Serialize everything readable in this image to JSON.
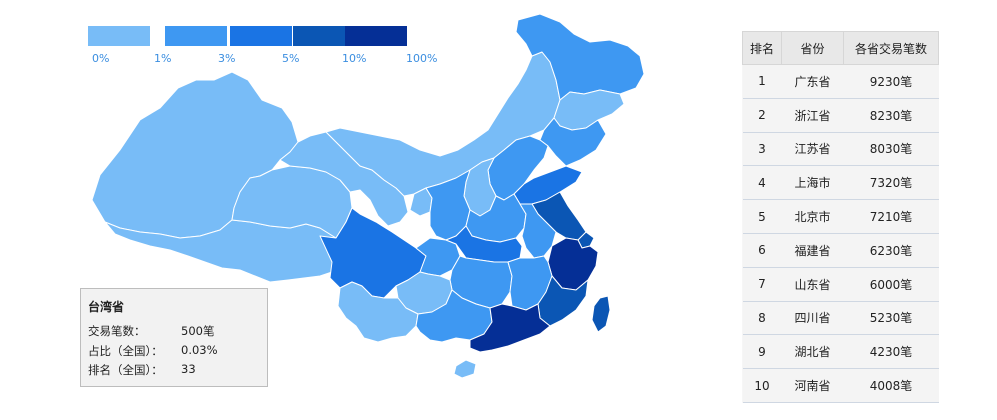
{
  "legend": {
    "swatches": [
      {
        "color": "#78bcf7"
      },
      {
        "color": "#3e98f2"
      },
      {
        "color": "#1a74e4"
      },
      {
        "color": "#0b56b4"
      },
      {
        "color": "#052f96"
      }
    ],
    "labels": [
      "0%",
      "1%",
      "3%",
      "5%",
      "10%",
      "100%"
    ]
  },
  "info_panel": {
    "title": "台湾省",
    "rows": [
      {
        "key": "交易笔数：",
        "value": "500笔"
      },
      {
        "key": "占比（全国）：",
        "value": "0.03%"
      },
      {
        "key": "排名（全国）：",
        "value": "33"
      }
    ]
  },
  "ranking": {
    "headers": [
      "排名",
      "省份",
      "各省交易笔数"
    ],
    "rows": [
      {
        "rank": "1",
        "province": "广东省",
        "count": "9230笔"
      },
      {
        "rank": "2",
        "province": "浙江省",
        "count": "8230笔"
      },
      {
        "rank": "3",
        "province": "江苏省",
        "count": "8030笔"
      },
      {
        "rank": "4",
        "province": "上海市",
        "count": "7320笔"
      },
      {
        "rank": "5",
        "province": "北京市",
        "count": "7210笔"
      },
      {
        "rank": "6",
        "province": "福建省",
        "count": "6230笔"
      },
      {
        "rank": "7",
        "province": "山东省",
        "count": "6000笔"
      },
      {
        "rank": "8",
        "province": "四川省",
        "count": "5230笔"
      },
      {
        "rank": "9",
        "province": "湖北省",
        "count": "4230笔"
      },
      {
        "rank": "10",
        "province": "河南省",
        "count": "4008笔"
      }
    ]
  },
  "colors": {
    "level0": "#78bcf7",
    "level1": "#3e98f2",
    "level2": "#1a74e4",
    "level3": "#0b56b4",
    "level4": "#052f96"
  }
}
